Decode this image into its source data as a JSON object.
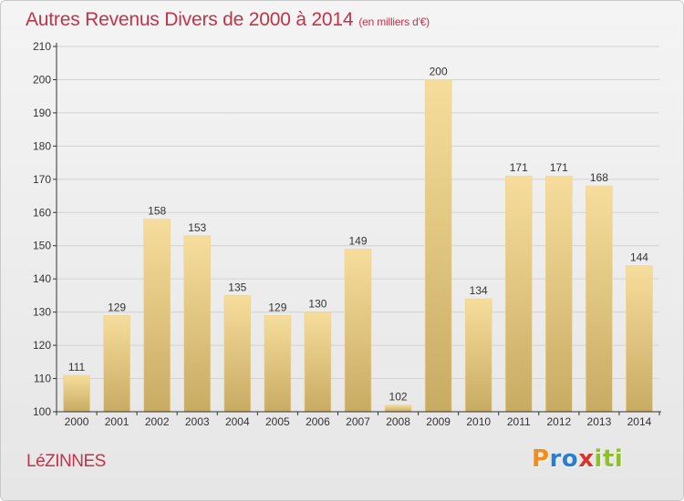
{
  "title": "Autres Revenus Divers de 2000 à 2014",
  "title_unit": "(en milliers d'€)",
  "commune": "LéZINNES",
  "logo": {
    "text": "Proxiti",
    "letters": [
      "P",
      "r",
      "o",
      "x",
      "i",
      "t",
      "i"
    ],
    "colors": [
      "#f28c1c",
      "#2b7fd0",
      "#2b7fd0",
      "#e0302a",
      "#8dbf2e",
      "#8dbf2e",
      "#8dbf2e"
    ]
  },
  "colors": {
    "title": "#c0344a",
    "bar_light": "#f6dc99",
    "bar_dark": "#c9ad66",
    "axis": "#333333",
    "grid": "#d4d4d4"
  },
  "chart_data": {
    "type": "bar",
    "categories": [
      "2000",
      "2001",
      "2002",
      "2003",
      "2004",
      "2005",
      "2006",
      "2007",
      "2008",
      "2009",
      "2010",
      "2011",
      "2012",
      "2013",
      "2014"
    ],
    "values": [
      111,
      129,
      158,
      153,
      135,
      129,
      130,
      149,
      102,
      200,
      134,
      171,
      171,
      168,
      144
    ],
    "ylim": [
      100,
      210
    ],
    "yticks": [
      100,
      110,
      120,
      130,
      140,
      150,
      160,
      170,
      180,
      190,
      200,
      210
    ],
    "grid": true,
    "data_labels": true
  }
}
